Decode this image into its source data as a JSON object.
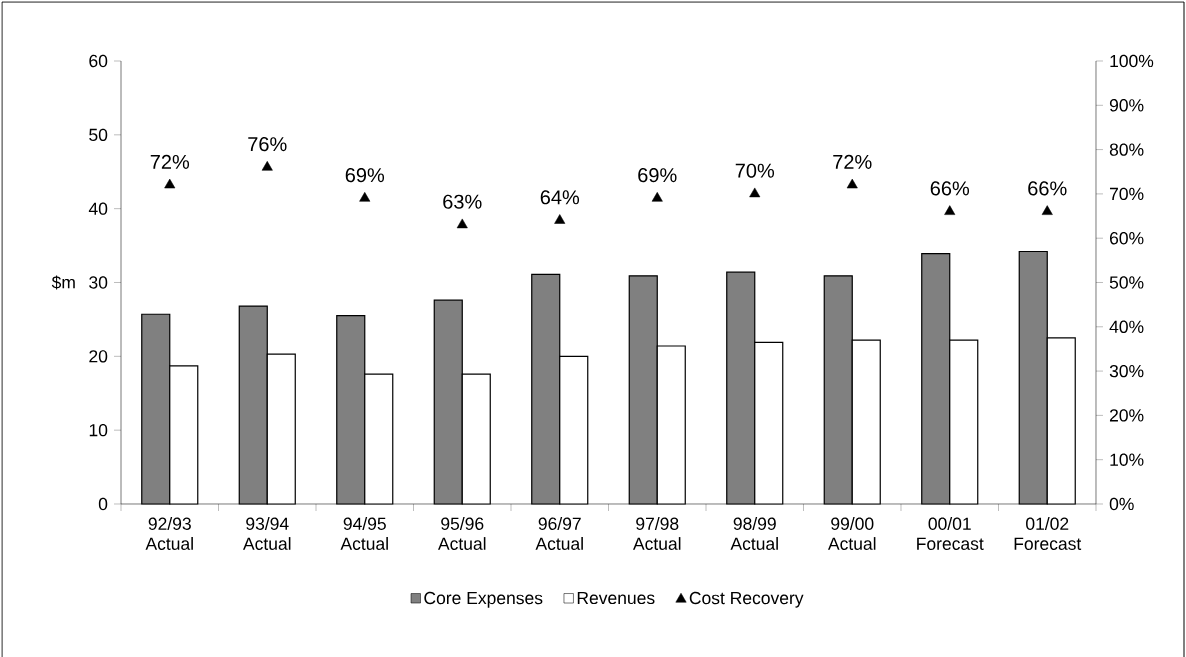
{
  "chart_data": {
    "type": "bar",
    "categories": [
      "92/93 Actual",
      "93/94 Actual",
      "94/95 Actual",
      "95/96 Actual",
      "96/97 Actual",
      "97/98 Actual",
      "98/99 Actual",
      "99/00 Actual",
      "00/01 Forecast",
      "01/02 Forecast"
    ],
    "ylabel": "$m",
    "ylim": [
      0,
      60
    ],
    "yticks": [
      0,
      10,
      20,
      30,
      40,
      50,
      60
    ],
    "y2lim": [
      0,
      100
    ],
    "y2ticks": [
      {
        "value": 0,
        "label": "0%"
      },
      {
        "value": 10,
        "label": "10%"
      },
      {
        "value": 20,
        "label": "20%"
      },
      {
        "value": 30,
        "label": "30%"
      },
      {
        "value": 40,
        "label": "40%"
      },
      {
        "value": 50,
        "label": "50%"
      },
      {
        "value": 60,
        "label": "60%"
      },
      {
        "value": 70,
        "label": "70%"
      },
      {
        "value": 80,
        "label": "80%"
      },
      {
        "value": 90,
        "label": "90%"
      },
      {
        "value": 100,
        "label": "100%"
      }
    ],
    "legend": "bottom",
    "series": [
      {
        "name": "Core Expenses",
        "type": "bar",
        "color": "#808080",
        "values": [
          25.7,
          26.8,
          25.5,
          27.6,
          31.1,
          30.9,
          31.4,
          30.9,
          33.9,
          34.2
        ]
      },
      {
        "name": "Revenues",
        "type": "bar",
        "color": "#ffffff",
        "values": [
          18.7,
          20.3,
          17.6,
          17.6,
          20.0,
          21.4,
          21.9,
          22.2,
          22.2,
          22.5
        ]
      },
      {
        "name": "Cost Recovery",
        "type": "scatter",
        "axis": "y2",
        "marker": "triangle",
        "color": "#000000",
        "values": [
          72,
          76,
          69,
          63,
          64,
          69,
          70,
          72,
          66,
          66
        ],
        "value_labels": [
          "72%",
          "76%",
          "69%",
          "63%",
          "64%",
          "69%",
          "70%",
          "72%",
          "66%",
          "66%"
        ]
      }
    ]
  }
}
